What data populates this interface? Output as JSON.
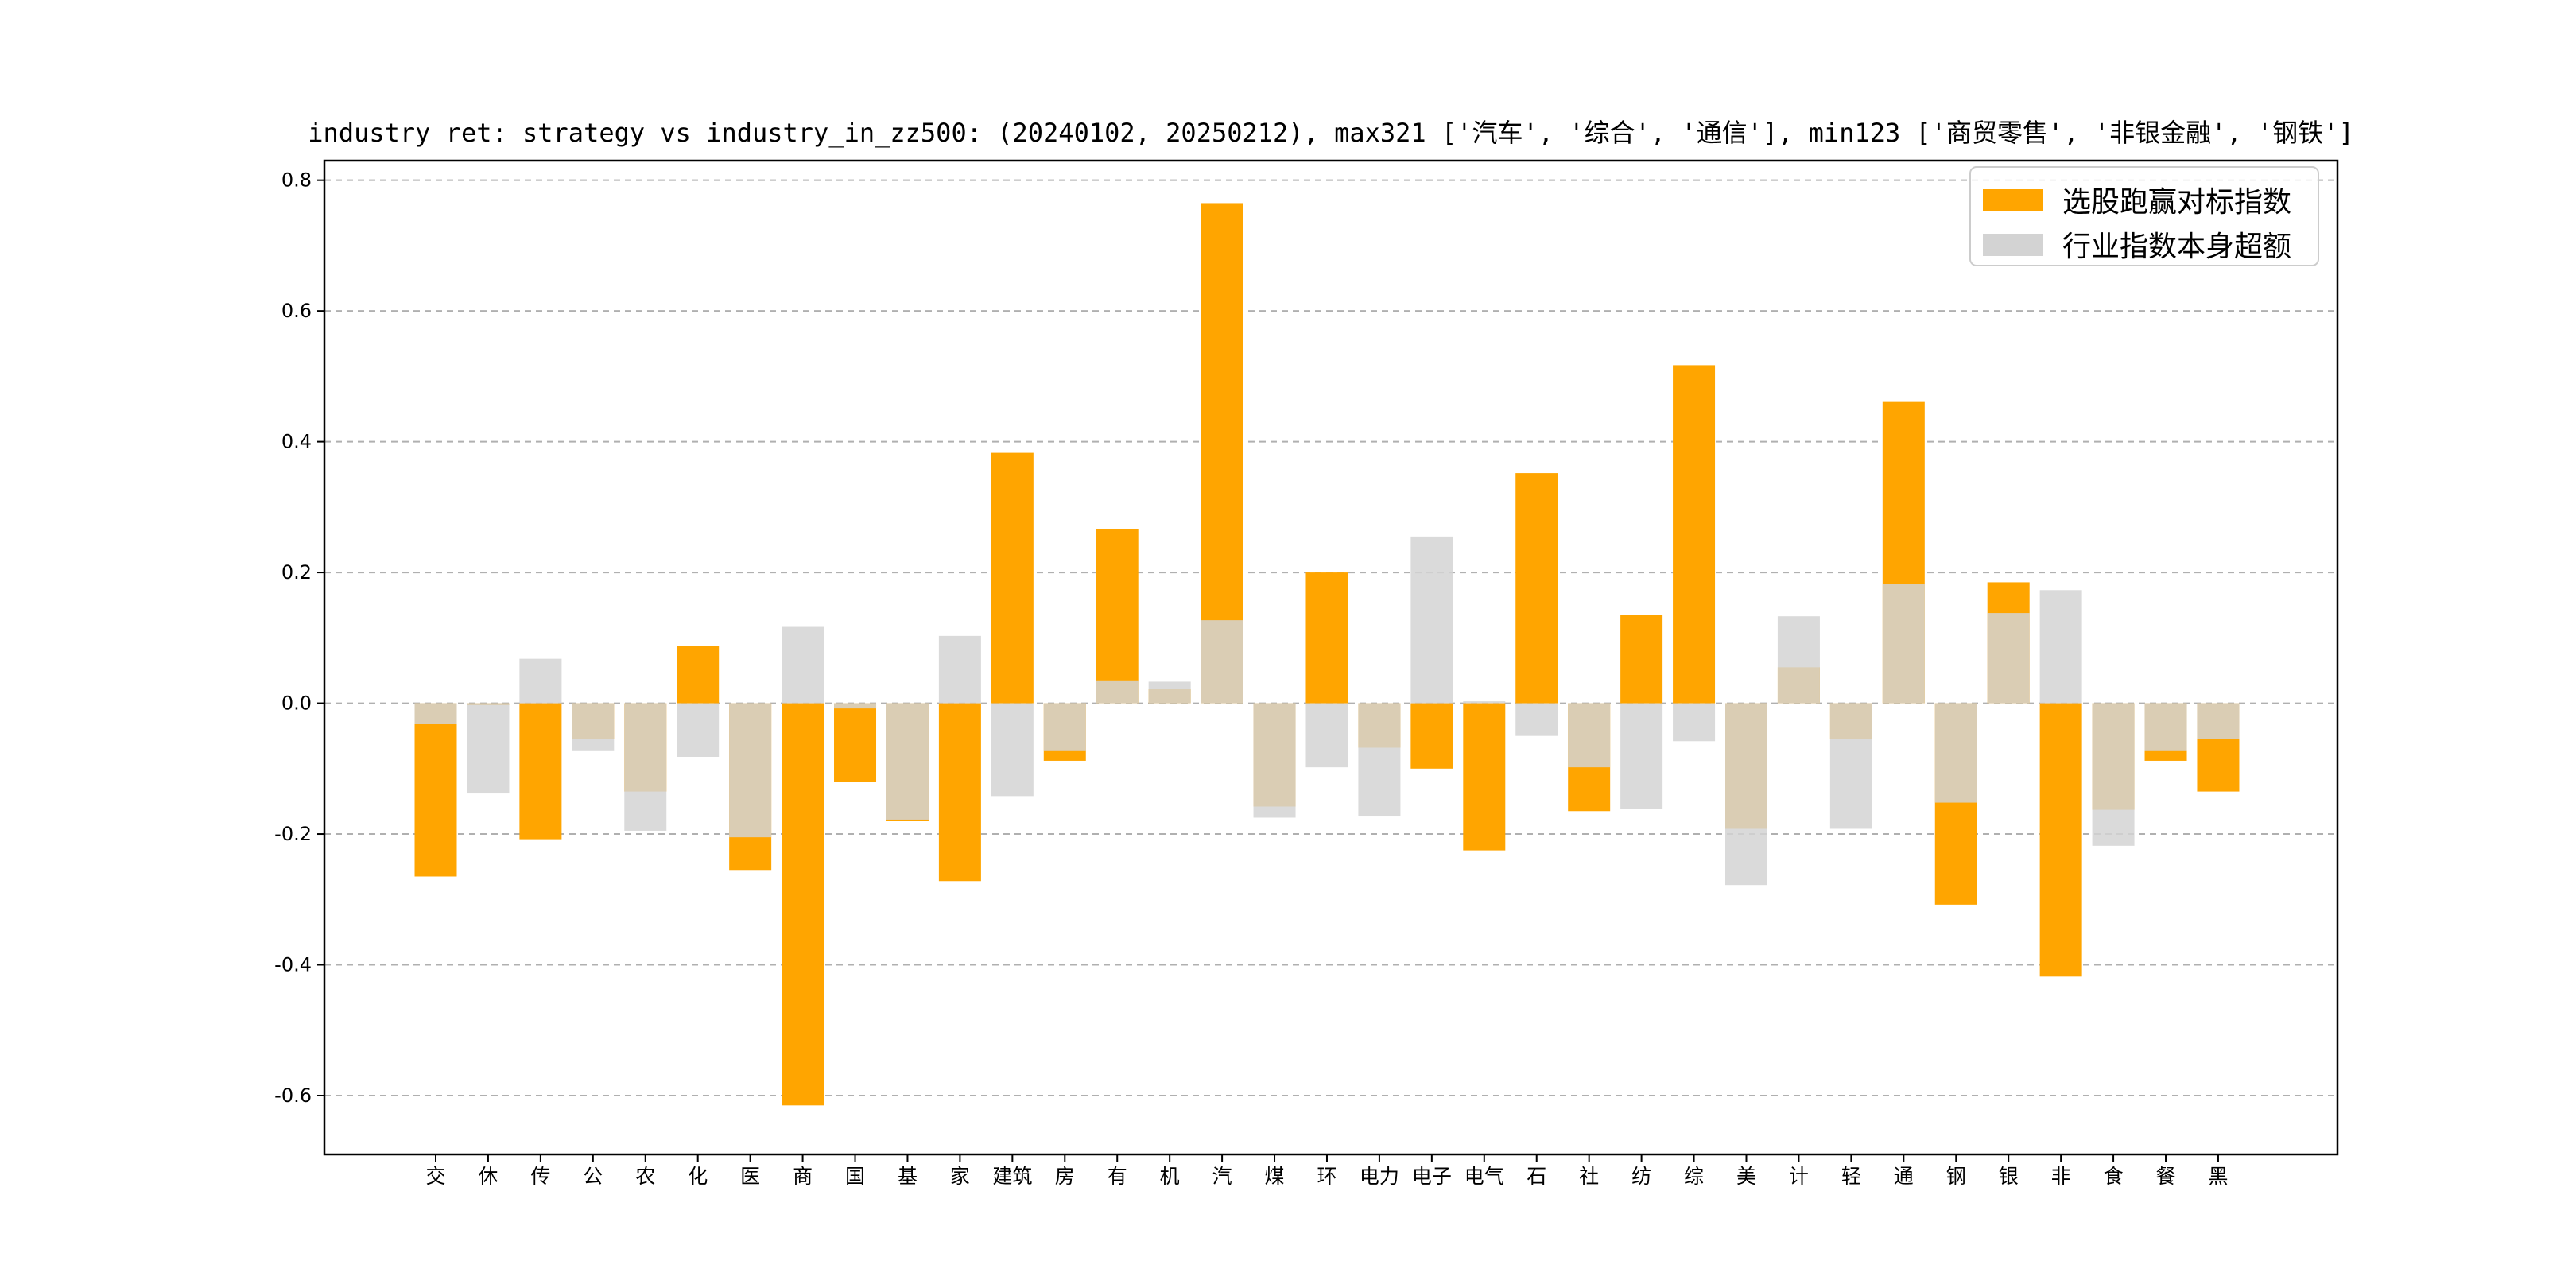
{
  "chart_data": {
    "type": "bar",
    "title": "industry ret: strategy vs industry_in_zz500: (20240102, 20250212), max321 ['汽车', '综合', '通信'], min123 ['商贸零售', '非银金融', '钢铁']",
    "xlabel": "",
    "ylabel": "",
    "ylim": [
      -0.69,
      0.83
    ],
    "yticks": [
      -0.6,
      -0.4,
      -0.2,
      0.0,
      0.2,
      0.4,
      0.6,
      0.8
    ],
    "ytick_labels": [
      "-0.6",
      "-0.4",
      "-0.2",
      "0.0",
      "0.2",
      "0.4",
      "0.6",
      "0.8"
    ],
    "grid": "y-dashed",
    "legend_position": "top-right",
    "categories": [
      "交",
      "休",
      "传",
      "公",
      "农",
      "化",
      "医",
      "商",
      "国",
      "基",
      "家",
      "建筑",
      "房",
      "有",
      "机",
      "汽",
      "煤",
      "环",
      "电力",
      "电子",
      "电气",
      "石",
      "社",
      "纺",
      "综",
      "美",
      "计",
      "轻",
      "通",
      "钢",
      "银",
      "非",
      "食",
      "餐",
      "黑"
    ],
    "series": [
      {
        "name": "选股跑赢对标指数",
        "color": "#FFA500",
        "values": [
          -0.265,
          -0.003,
          -0.208,
          -0.055,
          -0.135,
          0.088,
          -0.255,
          -0.615,
          -0.12,
          -0.18,
          -0.272,
          0.383,
          -0.088,
          0.267,
          0.022,
          0.765,
          -0.158,
          0.2,
          -0.068,
          -0.1,
          -0.225,
          0.352,
          -0.165,
          0.135,
          0.517,
          -0.192,
          0.055,
          -0.055,
          0.462,
          -0.308,
          0.185,
          -0.418,
          -0.163,
          -0.088,
          -0.135
        ]
      },
      {
        "name": "行业指数本身超额",
        "color": "#D3D3D3",
        "values": [
          -0.032,
          -0.138,
          0.068,
          -0.072,
          -0.195,
          -0.082,
          -0.205,
          0.118,
          -0.008,
          -0.178,
          0.103,
          -0.142,
          -0.072,
          0.035,
          0.033,
          0.127,
          -0.175,
          -0.098,
          -0.172,
          0.255,
          0.003,
          -0.05,
          -0.098,
          -0.162,
          -0.058,
          -0.278,
          0.133,
          -0.192,
          0.183,
          -0.152,
          0.138,
          0.173,
          -0.218,
          -0.072,
          -0.055
        ]
      }
    ]
  }
}
